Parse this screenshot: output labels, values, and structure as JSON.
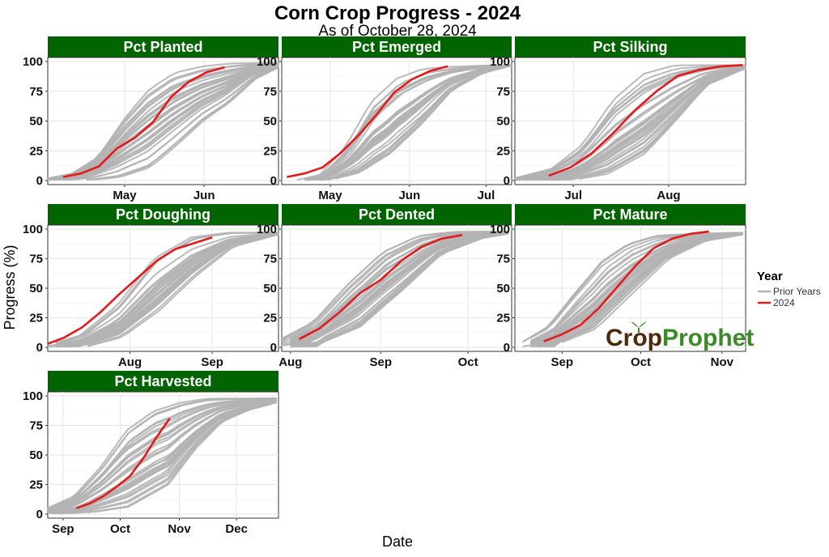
{
  "title": "Corn Crop Progress - 2024",
  "subtitle": "As of October 28, 2024",
  "xlabel": "Date",
  "ylabel": "Progress (%)",
  "legend": {
    "title": "Year",
    "items": [
      {
        "label": "Prior Years",
        "color": "#b3b3b3"
      },
      {
        "label": "2024",
        "color": "#e31a1c"
      }
    ]
  },
  "watermark": {
    "text_part1": "Crop",
    "text_part2": "Prophet",
    "color1": "#4a2a0a",
    "color2": "#3a8a2a",
    "icon": "sprout-icon"
  },
  "colors": {
    "strip": "#006400",
    "prior": "#b3b3b3",
    "current": "#e31a1c",
    "grid": "#e6e6e6"
  },
  "chart_data": [
    {
      "type": "line",
      "title": "Pct Planted",
      "x_axis": "date",
      "xlim": [
        "2024-04-01",
        "2024-06-30"
      ],
      "ylim": [
        0,
        100
      ],
      "x_ticks": [
        {
          "date": "2024-05-01",
          "label": "May"
        },
        {
          "date": "2024-06-01",
          "label": "Jun"
        }
      ],
      "y_ticks": [
        0,
        25,
        50,
        75,
        100
      ],
      "prior_years_envelope": {
        "early": [
          [
            "2024-04-01",
            2
          ],
          [
            "2024-04-10",
            6
          ],
          [
            "2024-04-20",
            20
          ],
          [
            "2024-05-01",
            55
          ],
          [
            "2024-05-10",
            78
          ],
          [
            "2024-05-20",
            92
          ],
          [
            "2024-05-31",
            97
          ],
          [
            "2024-06-10",
            99
          ]
        ],
        "late": [
          [
            "2024-04-14",
            0
          ],
          [
            "2024-04-28",
            2
          ],
          [
            "2024-05-10",
            10
          ],
          [
            "2024-05-20",
            28
          ],
          [
            "2024-05-31",
            50
          ],
          [
            "2024-06-10",
            65
          ],
          [
            "2024-06-20",
            85
          ],
          [
            "2024-06-30",
            96
          ]
        ]
      },
      "series": [
        {
          "name": "2024",
          "points": [
            [
              "2024-04-07",
              3
            ],
            [
              "2024-04-14",
              6
            ],
            [
              "2024-04-21",
              12
            ],
            [
              "2024-04-28",
              27
            ],
            [
              "2024-05-05",
              36
            ],
            [
              "2024-05-12",
              49
            ],
            [
              "2024-05-19",
              70
            ],
            [
              "2024-05-26",
              83
            ],
            [
              "2024-06-02",
              91
            ],
            [
              "2024-06-09",
              95
            ]
          ]
        }
      ]
    },
    {
      "type": "line",
      "title": "Pct Emerged",
      "x_axis": "date",
      "xlim": [
        "2024-04-12",
        "2024-07-11"
      ],
      "ylim": [
        0,
        100
      ],
      "x_ticks": [
        {
          "date": "2024-05-01",
          "label": "May"
        },
        {
          "date": "2024-06-01",
          "label": "Jun"
        },
        {
          "date": "2024-07-01",
          "label": "Jul"
        }
      ],
      "y_ticks": [
        0,
        25,
        50,
        75,
        100
      ],
      "prior_years_envelope": {
        "early": [
          [
            "2024-04-18",
            0
          ],
          [
            "2024-04-28",
            5
          ],
          [
            "2024-05-08",
            30
          ],
          [
            "2024-05-18",
            70
          ],
          [
            "2024-05-28",
            90
          ],
          [
            "2024-06-07",
            97
          ]
        ],
        "late": [
          [
            "2024-04-30",
            0
          ],
          [
            "2024-05-12",
            5
          ],
          [
            "2024-05-24",
            20
          ],
          [
            "2024-06-05",
            45
          ],
          [
            "2024-06-17",
            75
          ],
          [
            "2024-06-29",
            90
          ],
          [
            "2024-07-11",
            97
          ]
        ]
      },
      "series": [
        {
          "name": "2024",
          "points": [
            [
              "2024-04-14",
              3
            ],
            [
              "2024-04-21",
              6
            ],
            [
              "2024-04-28",
              11
            ],
            [
              "2024-05-05",
              23
            ],
            [
              "2024-05-12",
              38
            ],
            [
              "2024-05-19",
              55
            ],
            [
              "2024-05-26",
              74
            ],
            [
              "2024-06-02",
              85
            ],
            [
              "2024-06-09",
              92
            ],
            [
              "2024-06-16",
              96
            ]
          ]
        }
      ]
    },
    {
      "type": "line",
      "title": "Pct Silking",
      "x_axis": "date",
      "xlim": [
        "2024-06-12",
        "2024-08-26"
      ],
      "ylim": [
        0,
        100
      ],
      "x_ticks": [
        {
          "date": "2024-07-01",
          "label": "Jul"
        },
        {
          "date": "2024-08-01",
          "label": "Aug"
        }
      ],
      "y_ticks": [
        0,
        25,
        50,
        75,
        100
      ],
      "prior_years_envelope": {
        "early": [
          [
            "2024-06-12",
            2
          ],
          [
            "2024-06-24",
            10
          ],
          [
            "2024-07-04",
            30
          ],
          [
            "2024-07-14",
            68
          ],
          [
            "2024-07-24",
            90
          ],
          [
            "2024-08-03",
            97
          ]
        ],
        "late": [
          [
            "2024-06-30",
            0
          ],
          [
            "2024-07-12",
            5
          ],
          [
            "2024-07-24",
            22
          ],
          [
            "2024-08-03",
            50
          ],
          [
            "2024-08-13",
            80
          ],
          [
            "2024-08-26",
            95
          ]
        ]
      },
      "series": [
        {
          "name": "2024",
          "points": [
            [
              "2024-06-23",
              4
            ],
            [
              "2024-06-30",
              11
            ],
            [
              "2024-07-07",
              23
            ],
            [
              "2024-07-14",
              40
            ],
            [
              "2024-07-21",
              59
            ],
            [
              "2024-07-28",
              75
            ],
            [
              "2024-08-04",
              88
            ],
            [
              "2024-08-11",
              93
            ],
            [
              "2024-08-18",
              96
            ],
            [
              "2024-08-25",
              97
            ]
          ]
        }
      ]
    },
    {
      "type": "line",
      "title": "Pct Doughing",
      "x_axis": "date",
      "xlim": [
        "2024-07-01",
        "2024-09-26"
      ],
      "ylim": [
        0,
        100
      ],
      "x_ticks": [
        {
          "date": "2024-08-01",
          "label": "Aug"
        },
        {
          "date": "2024-09-01",
          "label": "Sep"
        }
      ],
      "y_ticks": [
        0,
        25,
        50,
        75,
        100
      ],
      "prior_years_envelope": {
        "early": [
          [
            "2024-07-02",
            2
          ],
          [
            "2024-07-14",
            10
          ],
          [
            "2024-07-28",
            35
          ],
          [
            "2024-08-11",
            75
          ],
          [
            "2024-08-25",
            93
          ],
          [
            "2024-09-08",
            97
          ]
        ],
        "late": [
          [
            "2024-07-14",
            0
          ],
          [
            "2024-07-28",
            8
          ],
          [
            "2024-08-11",
            30
          ],
          [
            "2024-08-25",
            60
          ],
          [
            "2024-09-08",
            85
          ],
          [
            "2024-09-26",
            96
          ]
        ]
      },
      "series": [
        {
          "name": "2024",
          "points": [
            [
              "2024-07-01",
              3
            ],
            [
              "2024-07-07",
              8
            ],
            [
              "2024-07-14",
              17
            ],
            [
              "2024-07-21",
              30
            ],
            [
              "2024-07-28",
              45
            ],
            [
              "2024-08-04",
              59
            ],
            [
              "2024-08-11",
              73
            ],
            [
              "2024-08-18",
              83
            ],
            [
              "2024-08-25",
              88
            ],
            [
              "2024-09-01",
              93
            ]
          ]
        }
      ]
    },
    {
      "type": "line",
      "title": "Pct Dented",
      "x_axis": "date",
      "xlim": [
        "2024-07-29",
        "2024-10-16"
      ],
      "ylim": [
        0,
        100
      ],
      "x_ticks": [
        {
          "date": "2024-08-01",
          "label": "Aug"
        },
        {
          "date": "2024-09-01",
          "label": "Sep"
        },
        {
          "date": "2024-10-01",
          "label": "Oct"
        }
      ],
      "y_ticks": [
        0,
        25,
        50,
        75,
        100
      ],
      "prior_years_envelope": {
        "early": [
          [
            "2024-07-29",
            6
          ],
          [
            "2024-08-10",
            22
          ],
          [
            "2024-08-22",
            55
          ],
          [
            "2024-09-03",
            82
          ],
          [
            "2024-09-15",
            95
          ],
          [
            "2024-09-27",
            98
          ]
        ],
        "late": [
          [
            "2024-08-10",
            2
          ],
          [
            "2024-08-24",
            15
          ],
          [
            "2024-09-07",
            45
          ],
          [
            "2024-09-21",
            78
          ],
          [
            "2024-10-05",
            92
          ],
          [
            "2024-10-16",
            97
          ]
        ]
      },
      "series": [
        {
          "name": "2024",
          "points": [
            [
              "2024-08-04",
              7
            ],
            [
              "2024-08-11",
              16
            ],
            [
              "2024-08-18",
              30
            ],
            [
              "2024-08-25",
              46
            ],
            [
              "2024-09-01",
              57
            ],
            [
              "2024-09-08",
              73
            ],
            [
              "2024-09-15",
              85
            ],
            [
              "2024-09-22",
              92
            ],
            [
              "2024-09-29",
              95
            ]
          ]
        }
      ]
    },
    {
      "type": "line",
      "title": "Pct Mature",
      "x_axis": "date",
      "xlim": [
        "2024-08-14",
        "2024-11-10"
      ],
      "ylim": [
        0,
        100
      ],
      "x_ticks": [
        {
          "date": "2024-09-01",
          "label": "Sep"
        },
        {
          "date": "2024-10-01",
          "label": "Oct"
        },
        {
          "date": "2024-11-01",
          "label": "Nov"
        }
      ],
      "y_ticks": [
        0,
        25,
        50,
        75,
        100
      ],
      "prior_years_envelope": {
        "early": [
          [
            "2024-08-18",
            5
          ],
          [
            "2024-08-28",
            20
          ],
          [
            "2024-09-07",
            50
          ],
          [
            "2024-09-17",
            78
          ],
          [
            "2024-09-27",
            92
          ],
          [
            "2024-10-07",
            97
          ]
        ],
        "late": [
          [
            "2024-08-30",
            3
          ],
          [
            "2024-09-13",
            15
          ],
          [
            "2024-09-27",
            45
          ],
          [
            "2024-10-11",
            75
          ],
          [
            "2024-10-25",
            90
          ],
          [
            "2024-11-10",
            96
          ]
        ]
      },
      "series": [
        {
          "name": "2024",
          "points": [
            [
              "2024-08-25",
              5
            ],
            [
              "2024-09-01",
              11
            ],
            [
              "2024-09-08",
              19
            ],
            [
              "2024-09-15",
              33
            ],
            [
              "2024-09-22",
              51
            ],
            [
              "2024-09-29",
              69
            ],
            [
              "2024-10-06",
              84
            ],
            [
              "2024-10-13",
              92
            ],
            [
              "2024-10-20",
              96
            ],
            [
              "2024-10-27",
              98
            ]
          ]
        }
      ]
    },
    {
      "type": "line",
      "title": "Pct Harvested",
      "x_axis": "date",
      "xlim": [
        "2024-08-24",
        "2024-12-23"
      ],
      "ylim": [
        0,
        100
      ],
      "x_ticks": [
        {
          "date": "2024-09-01",
          "label": "Sep"
        },
        {
          "date": "2024-10-01",
          "label": "Oct"
        },
        {
          "date": "2024-11-01",
          "label": "Nov"
        },
        {
          "date": "2024-12-01",
          "label": "Dec"
        }
      ],
      "y_ticks": [
        0,
        25,
        50,
        75,
        100
      ],
      "prior_years_envelope": {
        "early": [
          [
            "2024-08-24",
            5
          ],
          [
            "2024-09-07",
            15
          ],
          [
            "2024-09-21",
            40
          ],
          [
            "2024-10-05",
            72
          ],
          [
            "2024-10-19",
            88
          ],
          [
            "2024-11-02",
            95
          ],
          [
            "2024-11-16",
            98
          ]
        ],
        "late": [
          [
            "2024-09-14",
            1
          ],
          [
            "2024-10-05",
            6
          ],
          [
            "2024-10-26",
            25
          ],
          [
            "2024-11-09",
            55
          ],
          [
            "2024-11-23",
            78
          ],
          [
            "2024-12-07",
            88
          ],
          [
            "2024-12-23",
            95
          ]
        ]
      },
      "series": [
        {
          "name": "2024",
          "points": [
            [
              "2024-09-08",
              5
            ],
            [
              "2024-09-15",
              9
            ],
            [
              "2024-09-22",
              15
            ],
            [
              "2024-09-29",
              23
            ],
            [
              "2024-10-06",
              32
            ],
            [
              "2024-10-13",
              47
            ],
            [
              "2024-10-20",
              65
            ],
            [
              "2024-10-27",
              81
            ]
          ]
        }
      ]
    }
  ]
}
